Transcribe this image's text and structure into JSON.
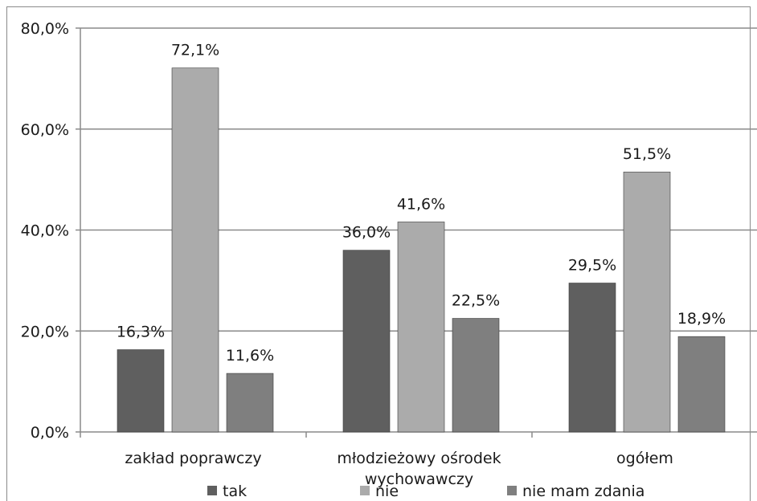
{
  "chart_data": {
    "type": "bar",
    "categories": [
      "zakład poprawczy",
      "młodzieżowy ośrodek wychowawczy",
      "ogółem"
    ],
    "category_lines": [
      [
        "zakład poprawczy"
      ],
      [
        "młodzieżowy ośrodek",
        "wychowawczy"
      ],
      [
        "ogółem"
      ]
    ],
    "series": [
      {
        "name": "tak",
        "values": [
          16.3,
          36.0,
          29.5
        ],
        "labels": [
          "16,3%",
          "36,0%",
          "29,5%"
        ],
        "color": "#5f5f5f"
      },
      {
        "name": "nie",
        "values": [
          72.1,
          41.6,
          51.5
        ],
        "labels": [
          "72,1%",
          "41,6%",
          "51,5%"
        ],
        "color": "#ababab"
      },
      {
        "name": "nie mam zdania",
        "values": [
          11.6,
          22.5,
          18.9
        ],
        "labels": [
          "11,6%",
          "22,5%",
          "18,9%"
        ],
        "color": "#7f7f7f"
      }
    ],
    "yticks": [
      0,
      20,
      40,
      60,
      80
    ],
    "ytick_labels": [
      "0,0%",
      "20,0%",
      "40,0%",
      "60,0%",
      "80,0%"
    ],
    "ylim": [
      0,
      80
    ],
    "grid": true,
    "legend_position": "bottom"
  }
}
